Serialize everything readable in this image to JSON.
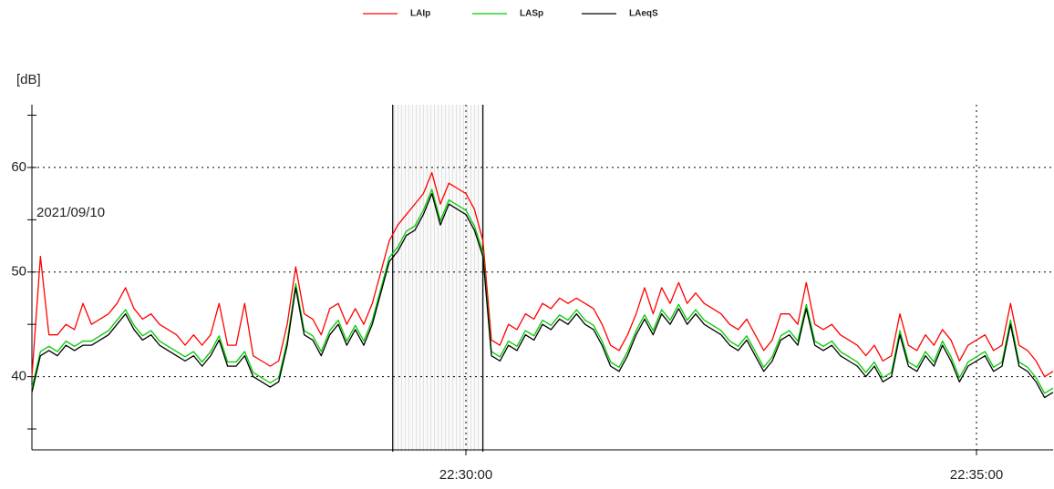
{
  "chart_data": {
    "type": "line",
    "y_label": "[dB]",
    "annotation": "2021/09/10",
    "x": [
      "22:25:45",
      "22:25:50",
      "22:25:55",
      "22:26:00",
      "22:26:05",
      "22:26:10",
      "22:26:15",
      "22:26:20",
      "22:26:25",
      "22:26:30",
      "22:26:35",
      "22:26:40",
      "22:26:45",
      "22:26:50",
      "22:26:55",
      "22:27:00",
      "22:27:05",
      "22:27:10",
      "22:27:15",
      "22:27:20",
      "22:27:25",
      "22:27:30",
      "22:27:35",
      "22:27:40",
      "22:27:45",
      "22:27:50",
      "22:27:55",
      "22:28:00",
      "22:28:05",
      "22:28:10",
      "22:28:15",
      "22:28:20",
      "22:28:25",
      "22:28:30",
      "22:28:35",
      "22:28:40",
      "22:28:45",
      "22:28:50",
      "22:28:55",
      "22:29:00",
      "22:29:05",
      "22:29:10",
      "22:29:15",
      "22:29:20",
      "22:29:25",
      "22:29:30",
      "22:29:35",
      "22:29:40",
      "22:29:45",
      "22:29:50",
      "22:29:55",
      "22:30:00",
      "22:30:05",
      "22:30:10",
      "22:30:15",
      "22:30:20",
      "22:30:25",
      "22:30:30",
      "22:30:35",
      "22:30:40",
      "22:30:45",
      "22:30:50",
      "22:30:55",
      "22:31:00",
      "22:31:05",
      "22:31:10",
      "22:31:15",
      "22:31:20",
      "22:31:25",
      "22:31:30",
      "22:31:35",
      "22:31:40",
      "22:31:45",
      "22:31:50",
      "22:31:55",
      "22:32:00",
      "22:32:05",
      "22:32:10",
      "22:32:15",
      "22:32:20",
      "22:32:25",
      "22:32:30",
      "22:32:35",
      "22:32:40",
      "22:32:45",
      "22:32:50",
      "22:32:55",
      "22:33:00",
      "22:33:05",
      "22:33:10",
      "22:33:15",
      "22:33:20",
      "22:33:25",
      "22:33:30",
      "22:33:35",
      "22:33:40",
      "22:33:45",
      "22:33:50",
      "22:33:55",
      "22:34:00",
      "22:34:05",
      "22:34:10",
      "22:34:15",
      "22:34:20",
      "22:34:25",
      "22:34:30",
      "22:34:35",
      "22:34:40",
      "22:34:45",
      "22:34:50",
      "22:34:55",
      "22:35:00",
      "22:35:05",
      "22:35:10",
      "22:35:15",
      "22:35:20",
      "22:35:25",
      "22:35:30",
      "22:35:35",
      "22:35:40",
      "22:35:45"
    ],
    "series": [
      {
        "name": "LAIp",
        "color": "#ff0000",
        "values": [
          40,
          51.5,
          44,
          44,
          45,
          44.5,
          47,
          45,
          45.5,
          46,
          47,
          48.5,
          46.5,
          45.5,
          46,
          45,
          44.5,
          44,
          43,
          44,
          43,
          44,
          47,
          43,
          43,
          47,
          42,
          41.5,
          41,
          41.5,
          45,
          50.5,
          46,
          45.5,
          44,
          46.5,
          47,
          45,
          46.5,
          45,
          47,
          50,
          53,
          54.5,
          55.5,
          56.5,
          57.5,
          59.5,
          56.5,
          58.5,
          58,
          57.5,
          56,
          53,
          43.5,
          43,
          45,
          44.5,
          46,
          45.5,
          47,
          46.5,
          47.5,
          47,
          47.5,
          47,
          46.5,
          45,
          43,
          42.5,
          44,
          46,
          48.5,
          46,
          48.5,
          47,
          49,
          47,
          48,
          47,
          46.5,
          46,
          45,
          44.5,
          45.5,
          44,
          42.5,
          43.5,
          46,
          46,
          45,
          49,
          45,
          44.5,
          45,
          44,
          43.5,
          43,
          42,
          43,
          41.5,
          42,
          46,
          43,
          42.5,
          44,
          43,
          44.5,
          43.5,
          41.5,
          43,
          43.5,
          44,
          42.5,
          43,
          47,
          43,
          42.5,
          41.5,
          40,
          40.5
        ]
      },
      {
        "name": "LASp",
        "color": "#00cc00",
        "values": [
          38.9,
          42.4,
          42.9,
          42.4,
          43.4,
          42.9,
          43.4,
          43.4,
          43.9,
          44.4,
          45.4,
          46.4,
          44.9,
          43.9,
          44.4,
          43.4,
          42.9,
          42.4,
          41.9,
          42.4,
          41.4,
          42.4,
          43.9,
          41.4,
          41.4,
          42.4,
          40.4,
          39.9,
          39.4,
          39.9,
          43.4,
          48.9,
          44.4,
          43.9,
          42.4,
          44.4,
          45.4,
          43.4,
          44.9,
          43.4,
          45.4,
          48.4,
          51.4,
          52.4,
          53.9,
          54.4,
          55.9,
          57.9,
          54.9,
          56.9,
          56.4,
          55.9,
          54.4,
          51.9,
          42.4,
          41.9,
          43.4,
          42.9,
          44.4,
          43.9,
          45.4,
          44.9,
          45.9,
          45.4,
          46.4,
          45.4,
          44.9,
          43.4,
          41.4,
          40.9,
          42.4,
          44.4,
          45.9,
          44.4,
          46.4,
          45.4,
          46.9,
          45.4,
          46.4,
          45.4,
          44.9,
          44.4,
          43.4,
          42.9,
          43.9,
          42.4,
          40.9,
          41.9,
          43.9,
          44.4,
          43.4,
          46.9,
          43.4,
          42.9,
          43.4,
          42.4,
          41.9,
          41.4,
          40.4,
          41.4,
          39.9,
          40.4,
          44.4,
          41.4,
          40.9,
          42.4,
          41.4,
          43.4,
          41.9,
          39.9,
          41.4,
          41.9,
          42.4,
          40.9,
          41.4,
          45.4,
          41.4,
          40.9,
          39.9,
          38.4,
          38.9
        ]
      },
      {
        "name": "LAeqS",
        "color": "#000000",
        "values": [
          38.5,
          42,
          42.5,
          42,
          43,
          42.5,
          43,
          43,
          43.5,
          44,
          45,
          46,
          44.5,
          43.5,
          44,
          43,
          42.5,
          42,
          41.5,
          42,
          41,
          42,
          43.5,
          41,
          41,
          42,
          40,
          39.5,
          39,
          39.5,
          43,
          48.5,
          44,
          43.5,
          42,
          44,
          45,
          43,
          44.5,
          43,
          45,
          48,
          51,
          52,
          53.5,
          54,
          55.5,
          57.5,
          54.5,
          56.5,
          56,
          55.5,
          54,
          51.5,
          42,
          41.5,
          43,
          42.5,
          44,
          43.5,
          45,
          44.5,
          45.5,
          45,
          46,
          45,
          44.5,
          43,
          41,
          40.5,
          42,
          44,
          45.5,
          44,
          46,
          45,
          46.5,
          45,
          46,
          45,
          44.5,
          44,
          43,
          42.5,
          43.5,
          42,
          40.5,
          41.5,
          43.5,
          44,
          43,
          46.5,
          43,
          42.5,
          43,
          42,
          41.5,
          41,
          40,
          41,
          39.5,
          40,
          44,
          41,
          40.5,
          42,
          41,
          43,
          41.5,
          39.5,
          41,
          41.5,
          42,
          40.5,
          41,
          45,
          41,
          40.5,
          39.5,
          38,
          38.5
        ]
      }
    ],
    "xlim": [
      "22:25:45",
      "22:35:45"
    ],
    "xticks": [
      "22:30:00",
      "22:35:00"
    ],
    "ylim": [
      33,
      66
    ],
    "yticks": [
      40,
      50,
      60
    ],
    "yminor_ticks": [
      35,
      45,
      55,
      65
    ],
    "highlight": [
      "22:29:17",
      "22:30:10"
    ],
    "grid": true,
    "legend": "top"
  }
}
